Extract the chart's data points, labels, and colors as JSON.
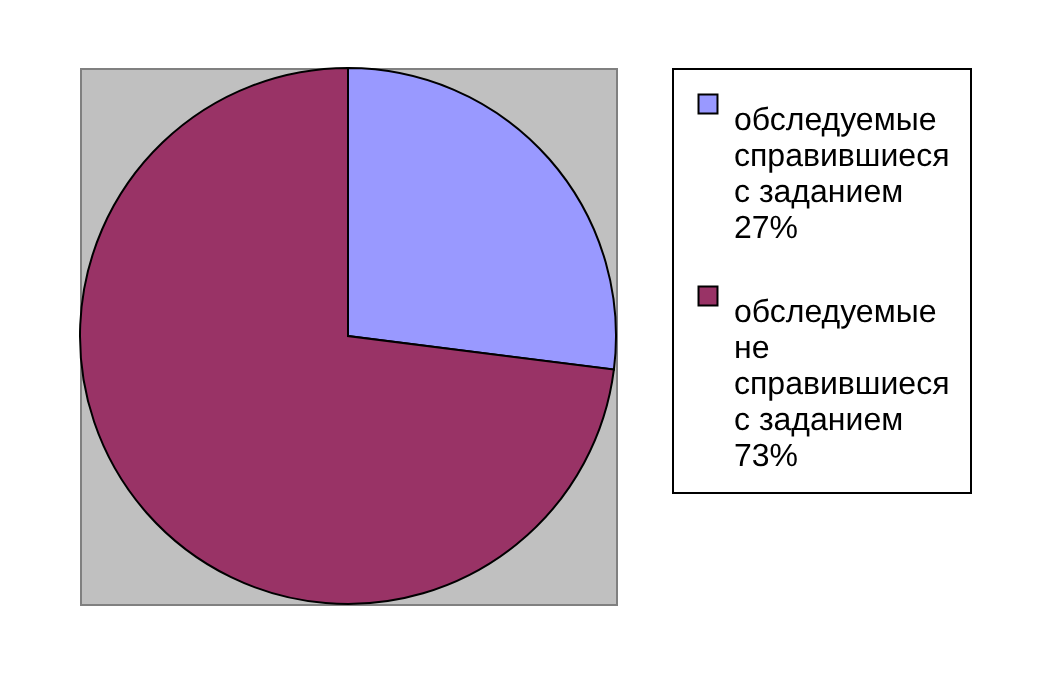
{
  "chart_data": {
    "type": "pie",
    "categories": [
      "обследуемые справившиеся с заданием 27%",
      "обследуемые не справившиеся с заданием 73%"
    ],
    "values": [
      27,
      73
    ],
    "colors": [
      "#9999ff",
      "#993366"
    ],
    "legend": "right"
  }
}
